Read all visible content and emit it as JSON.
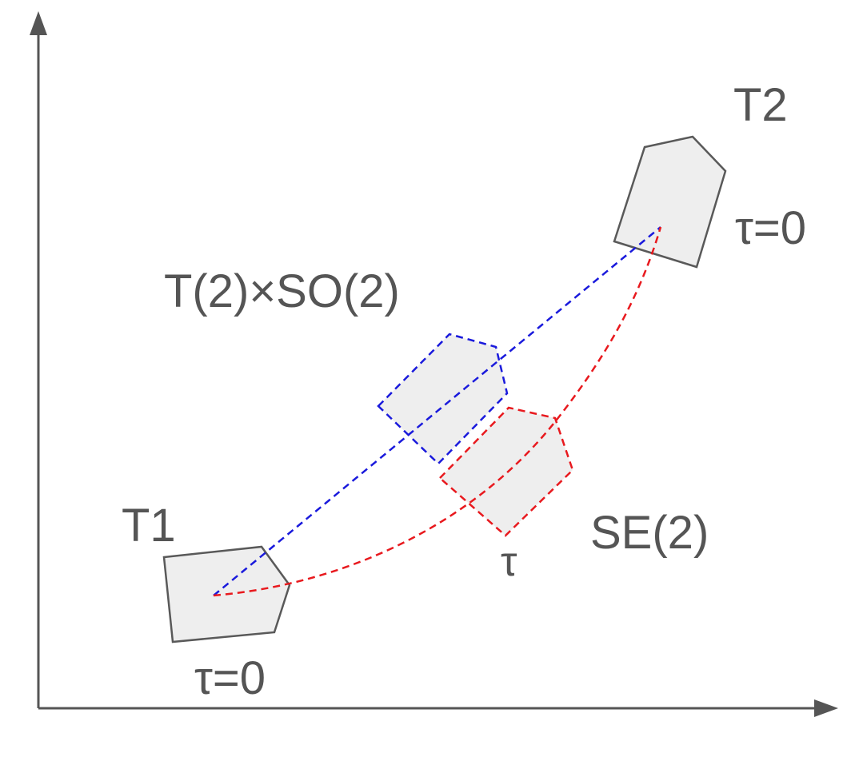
{
  "labels": {
    "t1": "T1",
    "t2": "T2",
    "t1_tau": "τ=0",
    "t2_tau": "τ=0",
    "translation_rotation_path": "T(2)×SO(2)",
    "se2_path": "SE(2)",
    "mid_tau": "τ"
  },
  "colors": {
    "axes": "#555555",
    "shape_fill": "#eeeeee",
    "shape_stroke": "#595959",
    "blue_path": "#1a1adc",
    "red_path": "#e8191e",
    "text": "#555555"
  }
}
